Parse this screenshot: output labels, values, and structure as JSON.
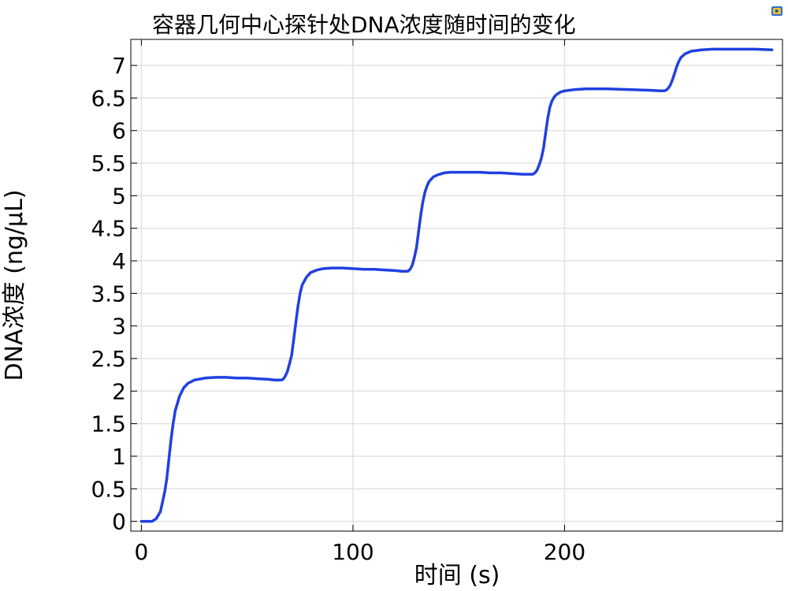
{
  "chart_data": {
    "type": "line",
    "title": "容器几何中心探针处DNA浓度随时间的变化",
    "xlabel": "时间 (s)",
    "ylabel": "DNA浓度 (ng/μL)",
    "xlim": [
      -5,
      303
    ],
    "ylim": [
      -0.15,
      7.4
    ],
    "x_ticks": [
      0,
      100,
      200
    ],
    "x_tick_labels": [
      "0",
      "100",
      "200"
    ],
    "y_ticks": [
      0,
      0.5,
      1,
      1.5,
      2,
      2.5,
      3,
      3.5,
      4,
      4.5,
      5,
      5.5,
      6,
      6.5,
      7
    ],
    "y_tick_labels": [
      "0",
      "0.5",
      "1",
      "1.5",
      "2",
      "2.5",
      "3",
      "3.5",
      "4",
      "4.5",
      "5",
      "5.5",
      "6",
      "6.5",
      "7"
    ],
    "grid": true,
    "series": [
      {
        "color": "#2040e0",
        "x": [
          0,
          3,
          5,
          7,
          9,
          11,
          12,
          13,
          14,
          15,
          16,
          18,
          20,
          22,
          25,
          30,
          35,
          40,
          45,
          50,
          55,
          60,
          63,
          65,
          66,
          67,
          68,
          69,
          70,
          71,
          72,
          73,
          74,
          75,
          76,
          78,
          80,
          83,
          86,
          90,
          95,
          100,
          105,
          110,
          115,
          120,
          123,
          125,
          126,
          127,
          128,
          129,
          130,
          131,
          132,
          133,
          134,
          135,
          136,
          138,
          140,
          143,
          146,
          150,
          155,
          160,
          165,
          170,
          175,
          180,
          183,
          184,
          185,
          186,
          187,
          188,
          189,
          190,
          191,
          192,
          193,
          194,
          195,
          196,
          198,
          200,
          205,
          210,
          215,
          220,
          230,
          240,
          245,
          246,
          247,
          248,
          249,
          250,
          251,
          252,
          253,
          254,
          255,
          257,
          260,
          265,
          270,
          280,
          290,
          298
        ],
        "y": [
          0.0,
          0.0,
          0.0,
          0.04,
          0.15,
          0.45,
          0.65,
          0.95,
          1.25,
          1.5,
          1.7,
          1.92,
          2.05,
          2.12,
          2.17,
          2.2,
          2.21,
          2.21,
          2.2,
          2.2,
          2.19,
          2.18,
          2.17,
          2.17,
          2.17,
          2.18,
          2.23,
          2.3,
          2.42,
          2.55,
          2.8,
          3.05,
          3.3,
          3.5,
          3.63,
          3.75,
          3.82,
          3.86,
          3.88,
          3.89,
          3.89,
          3.88,
          3.87,
          3.87,
          3.86,
          3.85,
          3.84,
          3.84,
          3.84,
          3.87,
          3.93,
          4.05,
          4.2,
          4.45,
          4.7,
          4.9,
          5.05,
          5.15,
          5.22,
          5.29,
          5.32,
          5.35,
          5.36,
          5.36,
          5.36,
          5.36,
          5.35,
          5.35,
          5.34,
          5.33,
          5.33,
          5.33,
          5.33,
          5.35,
          5.39,
          5.47,
          5.57,
          5.72,
          5.95,
          6.18,
          6.35,
          6.45,
          6.51,
          6.55,
          6.59,
          6.61,
          6.63,
          6.64,
          6.64,
          6.64,
          6.63,
          6.62,
          6.61,
          6.61,
          6.61,
          6.62,
          6.65,
          6.7,
          6.78,
          6.88,
          6.98,
          7.06,
          7.12,
          7.18,
          7.22,
          7.24,
          7.25,
          7.25,
          7.25,
          7.24
        ]
      }
    ]
  },
  "icons": {
    "corner": "comsol-logo-icon"
  }
}
